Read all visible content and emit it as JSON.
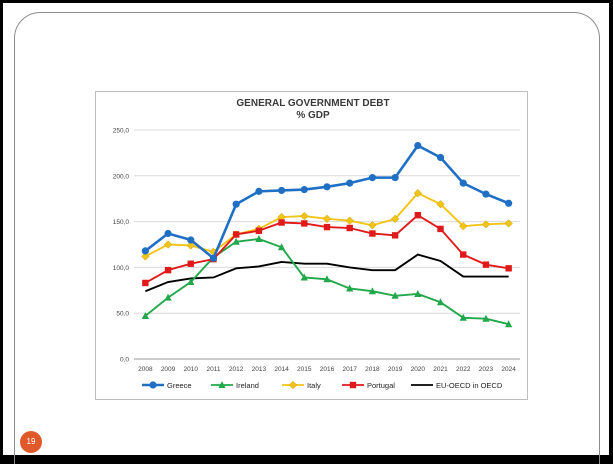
{
  "slide": {
    "page_number": "19"
  },
  "colors": {
    "Greece": "#1f6fc5",
    "Ireland": "#21a84a",
    "Italy": "#f2c417",
    "Portugal": "#e01a1a",
    "EU-OECD in OECD": "#000000",
    "page_badge": "#e0592a"
  },
  "chart_data": {
    "type": "line",
    "title": "GENERAL GOVERNMENT DEBT",
    "subtitle": "% GDP",
    "xlabel": "",
    "ylabel": "",
    "ylim": [
      0,
      250
    ],
    "yticks": [
      "0,0",
      "50,0",
      "100,0",
      "150,0",
      "200,0",
      "250,0"
    ],
    "categories": [
      "2008",
      "2009",
      "2010",
      "2011",
      "2012",
      "2013",
      "2014",
      "2015",
      "2016",
      "2017",
      "2018",
      "2019",
      "2020",
      "2021",
      "2022",
      "2023",
      "2024"
    ],
    "grid": true,
    "legend": "bottom",
    "series": [
      {
        "name": "Greece",
        "marker": "circle",
        "values": [
          118,
          137,
          130,
          110,
          169,
          183,
          184,
          185,
          188,
          192,
          198,
          198,
          233,
          220,
          192,
          180,
          170
        ]
      },
      {
        "name": "Ireland",
        "marker": "triangle",
        "values": [
          47,
          67,
          84,
          111,
          128,
          131,
          122,
          89,
          87,
          77,
          74,
          69,
          71,
          62,
          45,
          44,
          38
        ]
      },
      {
        "name": "Italy",
        "marker": "diamond",
        "values": [
          112,
          125,
          124,
          117,
          136,
          142,
          155,
          156,
          153,
          151,
          146,
          153,
          181,
          169,
          145,
          147,
          148
        ]
      },
      {
        "name": "Portugal",
        "marker": "square",
        "values": [
          83,
          97,
          104,
          109,
          136,
          140,
          149,
          148,
          144,
          143,
          137,
          135,
          157,
          142,
          114,
          103,
          99
        ]
      },
      {
        "name": "EU-OECD in OECD",
        "marker": "none",
        "values": [
          74,
          84,
          88,
          89,
          99,
          101,
          106,
          104,
          104,
          100,
          97,
          97,
          114,
          107,
          90,
          90,
          90
        ]
      }
    ]
  }
}
